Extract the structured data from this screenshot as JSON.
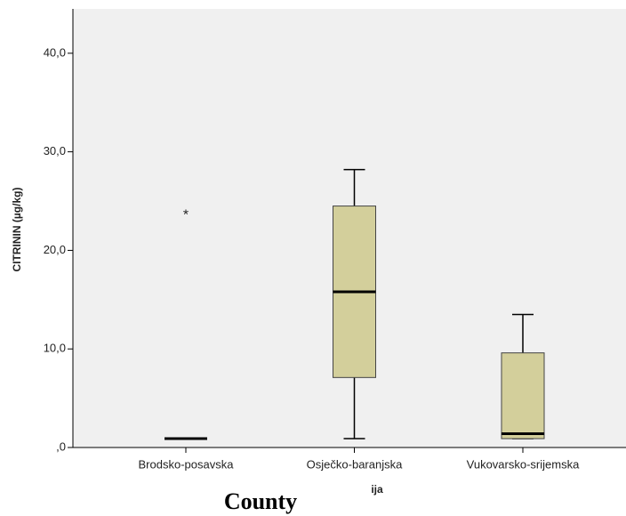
{
  "chart_data": {
    "type": "box",
    "y_label": "CITRININ (µg/kg)",
    "x_label": "ija",
    "caption": "County",
    "categories": [
      "Brodsko-posavska",
      "Osječko-baranjska",
      "Vukovarsko-srijemska"
    ],
    "min": [
      0.9,
      0.9,
      0.9
    ],
    "q1": [
      0.9,
      7.1,
      0.9
    ],
    "median": [
      0.9,
      15.8,
      1.4
    ],
    "q3": [
      0.9,
      24.5,
      9.6
    ],
    "max": [
      0.9,
      28.2,
      13.5
    ],
    "outliers": [
      [
        23.8
      ],
      [],
      []
    ],
    "outlier_symbol": "*",
    "color": "#d3cf9b",
    "ylim": [
      0,
      44.5
    ],
    "yticks": [
      {
        "value": 0,
        "label": ",0"
      },
      {
        "value": 10,
        "label": "10,0"
      },
      {
        "value": 20,
        "label": "20,0"
      },
      {
        "value": 30,
        "label": "30,0"
      },
      {
        "value": 40,
        "label": "40,0"
      }
    ]
  }
}
